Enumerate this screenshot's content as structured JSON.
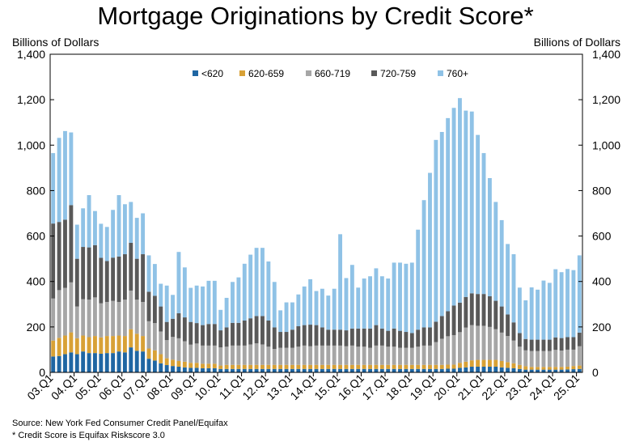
{
  "chart_data": {
    "type": "bar",
    "stacked": true,
    "title": "Mortgage Originations by Credit Score*",
    "ylabel_left": "Billions of Dollars",
    "ylabel_right": "Billions of Dollars",
    "ylim": [
      0,
      1400
    ],
    "yticks": [
      0,
      200,
      400,
      600,
      800,
      1000,
      1200,
      1400
    ],
    "ytick_labels": [
      "0",
      "200",
      "400",
      "600",
      "800",
      "1,000",
      "1,200",
      "1,400"
    ],
    "legend_position": "top-center",
    "grid": false,
    "first_quarter": "03.Q1",
    "xtick_labels": [
      "03.Q1",
      "04.Q1",
      "05.Q1",
      "06.Q1",
      "07.Q1",
      "08.Q1",
      "09.Q1",
      "10.Q1",
      "11.Q1",
      "12.Q1",
      "13.Q1",
      "14.Q1",
      "15.Q1",
      "16.Q1",
      "17.Q1",
      "18.Q1",
      "19.Q1",
      "20.Q1",
      "21.Q1",
      "22.Q1",
      "23.Q1",
      "24.Q1",
      "25.Q1"
    ],
    "series": [
      {
        "name": "<620",
        "color": "#1f66a3",
        "values": [
          70,
          72,
          80,
          88,
          80,
          92,
          85,
          85,
          82,
          85,
          85,
          92,
          88,
          110,
          95,
          92,
          60,
          52,
          40,
          32,
          28,
          25,
          22,
          20,
          20,
          18,
          18,
          18,
          15,
          15,
          15,
          15,
          15,
          15,
          15,
          15,
          15,
          15,
          15,
          15,
          15,
          15,
          15,
          15,
          15,
          15,
          15,
          15,
          15,
          15,
          15,
          15,
          15,
          15,
          15,
          15,
          15,
          15,
          15,
          15,
          15,
          15,
          15,
          15,
          15,
          15,
          16,
          16,
          20,
          22,
          25,
          25,
          25,
          25,
          25,
          22,
          20,
          18,
          15,
          12,
          12,
          12,
          12,
          12,
          12,
          12,
          13,
          14,
          15
        ]
      },
      {
        "name": "620-659",
        "color": "#d8a136",
        "values": [
          70,
          80,
          82,
          88,
          70,
          70,
          70,
          75,
          72,
          75,
          75,
          70,
          72,
          80,
          75,
          68,
          45,
          45,
          40,
          30,
          28,
          25,
          25,
          22,
          22,
          20,
          20,
          20,
          15,
          18,
          18,
          18,
          18,
          18,
          18,
          18,
          18,
          18,
          18,
          18,
          18,
          18,
          18,
          18,
          18,
          18,
          18,
          18,
          18,
          18,
          18,
          18,
          18,
          18,
          18,
          18,
          18,
          18,
          18,
          18,
          18,
          18,
          18,
          18,
          18,
          18,
          18,
          18,
          22,
          25,
          28,
          30,
          30,
          30,
          30,
          28,
          25,
          22,
          18,
          15,
          12,
          12,
          12,
          12,
          12,
          12,
          12,
          14,
          15
        ]
      },
      {
        "name": "660-719",
        "color": "#a6a6a6",
        "values": [
          185,
          210,
          210,
          220,
          140,
          160,
          165,
          170,
          150,
          150,
          155,
          148,
          160,
          170,
          150,
          150,
          120,
          120,
          100,
          80,
          100,
          100,
          90,
          80,
          85,
          80,
          80,
          80,
          80,
          80,
          85,
          85,
          85,
          90,
          95,
          90,
          80,
          70,
          75,
          75,
          75,
          80,
          85,
          82,
          85,
          85,
          85,
          85,
          85,
          82,
          85,
          80,
          80,
          75,
          85,
          85,
          80,
          80,
          75,
          75,
          75,
          80,
          85,
          85,
          100,
          115,
          125,
          130,
          135,
          150,
          155,
          150,
          150,
          145,
          135,
          125,
          115,
          100,
          80,
          70,
          70,
          70,
          70,
          70,
          75,
          72,
          75,
          72,
          85
        ]
      },
      {
        "name": "720-759",
        "color": "#595959",
        "values": [
          330,
          300,
          300,
          340,
          210,
          230,
          230,
          230,
          200,
          180,
          190,
          200,
          200,
          210,
          180,
          210,
          130,
          120,
          110,
          80,
          80,
          110,
          105,
          100,
          90,
          90,
          95,
          95,
          75,
          85,
          100,
          100,
          110,
          115,
          120,
          125,
          115,
          95,
          70,
          70,
          80,
          90,
          90,
          95,
          90,
          80,
          70,
          70,
          70,
          70,
          75,
          80,
          80,
          85,
          90,
          75,
          70,
          80,
          75,
          70,
          65,
          75,
          80,
          80,
          90,
          100,
          110,
          130,
          130,
          135,
          140,
          140,
          140,
          135,
          125,
          115,
          95,
          80,
          60,
          50,
          50,
          50,
          50,
          50,
          55,
          55,
          55,
          55,
          60
        ]
      },
      {
        "name": "760+",
        "color": "#8fc2e6",
        "values": [
          310,
          370,
          390,
          320,
          150,
          170,
          230,
          150,
          150,
          150,
          210,
          270,
          220,
          180,
          180,
          180,
          160,
          140,
          100,
          160,
          105,
          270,
          220,
          150,
          165,
          170,
          190,
          190,
          90,
          130,
          180,
          200,
          250,
          280,
          300,
          300,
          260,
          200,
          95,
          130,
          120,
          140,
          170,
          200,
          150,
          170,
          150,
          180,
          420,
          230,
          280,
          180,
          220,
          230,
          250,
          230,
          230,
          290,
          300,
          300,
          310,
          440,
          560,
          680,
          800,
          810,
          850,
          870,
          900,
          820,
          800,
          700,
          620,
          520,
          435,
          380,
          310,
          300,
          200,
          170,
          230,
          220,
          260,
          250,
          300,
          290,
          300,
          295,
          340
        ]
      }
    ]
  },
  "notes": {
    "source": "Source: New York Fed Consumer Credit Panel/Equifax",
    "footnote": "* Credit Score is Equifax Riskscore 3.0"
  }
}
